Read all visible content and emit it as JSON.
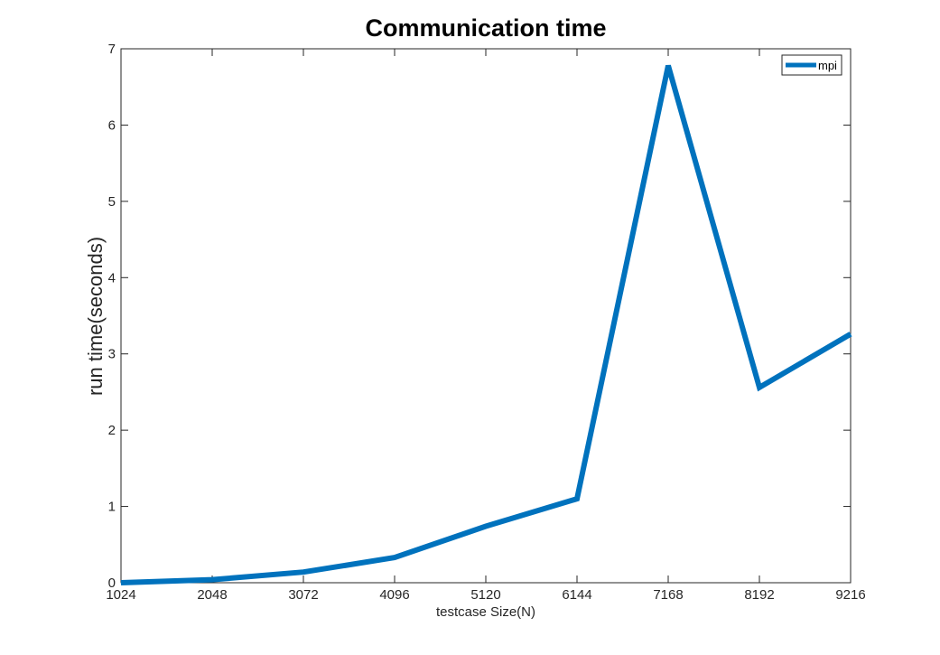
{
  "chart_data": {
    "type": "line",
    "title": "Communication time",
    "xlabel": "testcase Size(N)",
    "ylabel": "run time(seconds)",
    "x": [
      1024,
      2048,
      3072,
      4096,
      5120,
      6144,
      7168,
      8192,
      9216
    ],
    "xticks": [
      "1024",
      "2048",
      "3072",
      "4096",
      "5120",
      "6144",
      "7168",
      "8192",
      "9216"
    ],
    "yticks": [
      "0",
      "1",
      "2",
      "3",
      "4",
      "5",
      "6",
      "7"
    ],
    "xlim": [
      1024,
      9216
    ],
    "ylim": [
      0,
      7
    ],
    "grid": false,
    "legend_position": "top-right",
    "series": [
      {
        "name": "mpi",
        "color": "#0072bd",
        "values": [
          0.0,
          0.04,
          0.14,
          0.33,
          0.74,
          1.1,
          6.78,
          2.56,
          3.26
        ]
      }
    ]
  }
}
